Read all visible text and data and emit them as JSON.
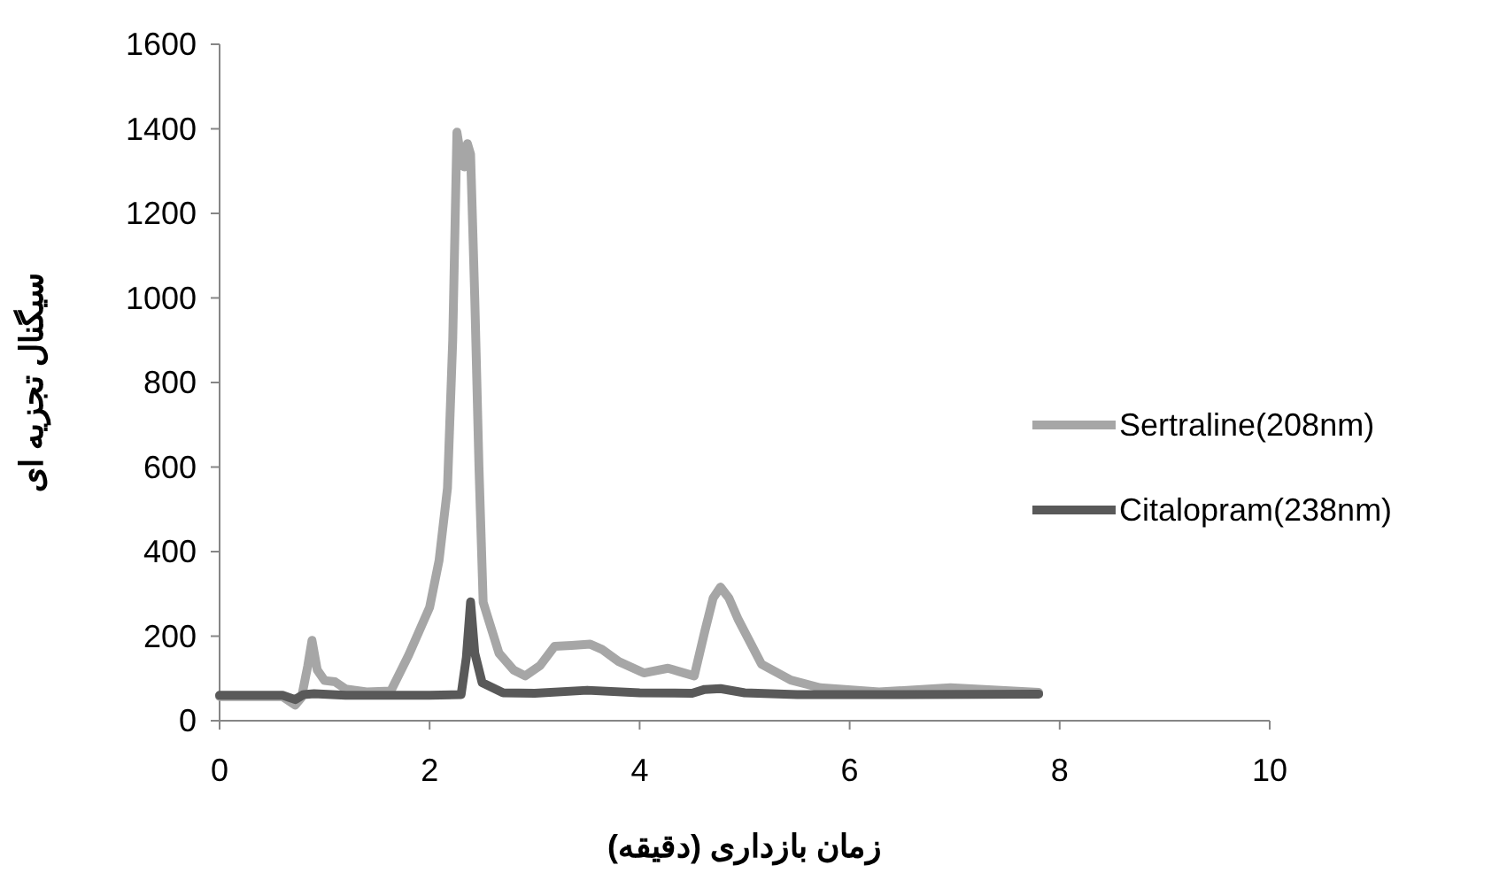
{
  "chart_data": {
    "type": "line",
    "xlabel": "زمان بازداری (دقیقه)",
    "ylabel": "سیگنال تجزیه ای",
    "xlim": [
      0,
      10
    ],
    "xticks": [
      0,
      2,
      4,
      6,
      8,
      10
    ],
    "ylim": [
      0,
      1600
    ],
    "yticks": [
      0,
      200,
      400,
      600,
      800,
      1000,
      1200,
      1400,
      1600
    ],
    "grid": false,
    "legend": "right",
    "marker": "none",
    "line_style": "solid",
    "series": [
      {
        "name": "Sertraline(208nm)",
        "color": "#a6a6a6",
        "x": [
          0,
          0.6,
          0.72,
          0.78,
          0.84,
          0.88,
          0.93,
          1.0,
          1.1,
          1.2,
          1.4,
          1.63,
          1.8,
          2.0,
          2.09,
          2.17,
          2.22,
          2.26,
          2.3,
          2.33,
          2.36,
          2.39,
          2.43,
          2.47,
          2.51,
          2.56,
          2.66,
          2.8,
          2.91,
          3.05,
          3.19,
          3.35,
          3.53,
          3.64,
          3.8,
          4.04,
          4.27,
          4.52,
          4.62,
          4.7,
          4.77,
          4.85,
          4.94,
          5.16,
          5.44,
          5.72,
          6.28,
          6.96,
          7.8
        ],
        "values": [
          57,
          57,
          37,
          55,
          130,
          190,
          120,
          95,
          92,
          75,
          68,
          70,
          155,
          268,
          379,
          550,
          900,
          1392,
          1330,
          1310,
          1365,
          1340,
          1000,
          600,
          280,
          240,
          160,
          120,
          106,
          130,
          176,
          178,
          181,
          169,
          140,
          113,
          124,
          106,
          211,
          290,
          316,
          290,
          239,
          134,
          96,
          78,
          68,
          78,
          67
        ]
      },
      {
        "name": "Citalopram(238nm)",
        "color": "#595959",
        "x": [
          0,
          0.6,
          0.72,
          0.8,
          0.9,
          1.2,
          2.0,
          2.3,
          2.35,
          2.39,
          2.43,
          2.5,
          2.7,
          3.0,
          3.5,
          4.0,
          4.5,
          4.62,
          4.77,
          5.0,
          5.5,
          6.5,
          7.8
        ],
        "values": [
          60,
          60,
          50,
          62,
          64,
          60,
          60,
          62,
          150,
          281,
          160,
          90,
          66,
          65,
          72,
          66,
          65,
          74,
          76,
          66,
          62,
          62,
          63
        ]
      }
    ]
  }
}
